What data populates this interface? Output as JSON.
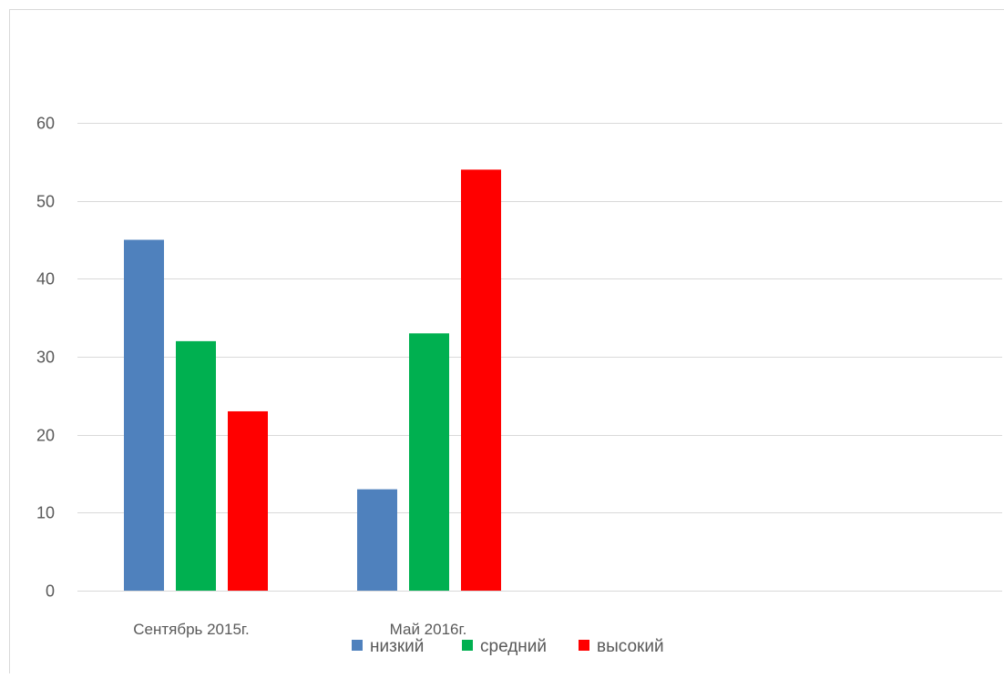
{
  "chart_data": {
    "type": "bar",
    "title": "",
    "xlabel": "",
    "ylabel": "",
    "categories": [
      "Сентябрь 2015г.",
      "Май 2016г."
    ],
    "series": [
      {
        "name": "низкий",
        "values": [
          45,
          13
        ],
        "color": "#4F81BD"
      },
      {
        "name": "средний",
        "values": [
          32,
          33
        ],
        "color": "#00B050"
      },
      {
        "name": "высокий",
        "values": [
          23,
          54
        ],
        "color": "#FF0000"
      }
    ],
    "ylim": [
      0,
      60
    ],
    "yticks": [
      "0",
      "10",
      "20",
      "30",
      "40",
      "50",
      "60"
    ],
    "grid": true,
    "legend_position": "bottom"
  },
  "colors": {
    "gridline": "#D9D9D9",
    "frame_border": "#D9D9D9",
    "text": "#595959"
  }
}
